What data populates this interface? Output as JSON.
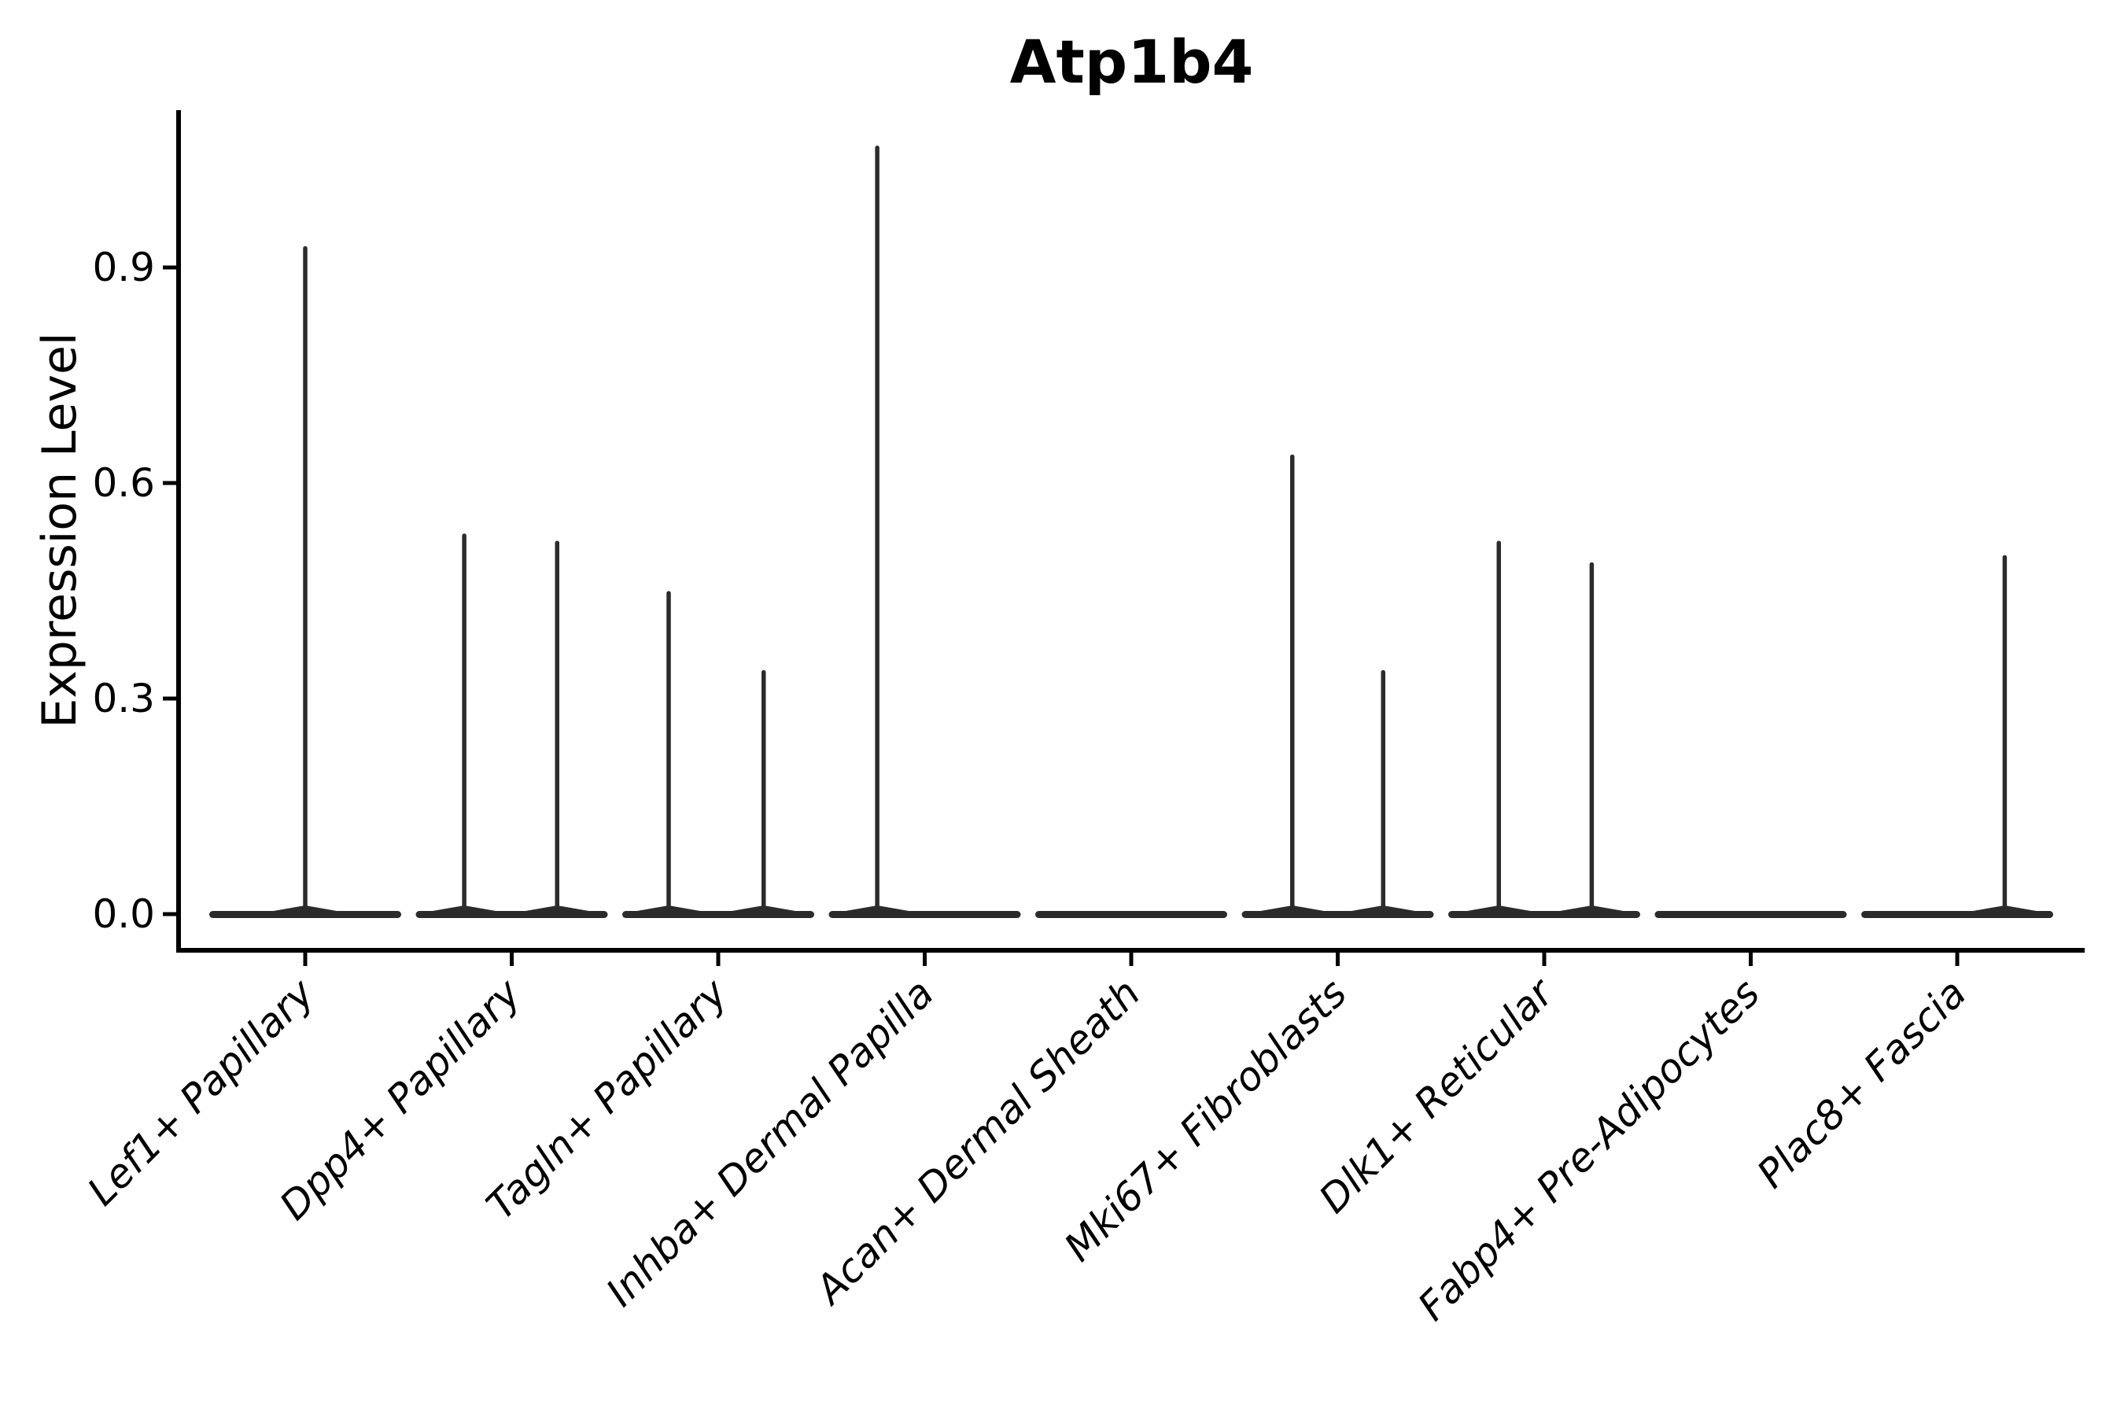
{
  "chart_data": {
    "type": "violin",
    "title": "Atp1b4",
    "xlabel": "",
    "ylabel": "Expression Level",
    "categories": [
      "Lef1+ Papillary",
      "Dpp4+ Papillary",
      "Tagln+ Papillary",
      "Inhba+ Dermal Papilla",
      "Acan+ Dermal Sheath",
      "Mki67+ Fibroblasts",
      "Dlk1+ Reticular",
      "Fabp4+ Pre-Adipocytes",
      "Plac8+ Fascia"
    ],
    "yticks": [
      0.0,
      0.3,
      0.6,
      0.9
    ],
    "ytick_labels": [
      "0.0",
      "0.3",
      "0.6",
      "0.9"
    ],
    "ylim": [
      -0.05,
      1.12
    ],
    "grid": false,
    "legend": null,
    "x_tick_rotation": 45,
    "x_tick_style": "italic",
    "violins": [
      {
        "category": "Lef1+ Papillary",
        "base_value": 0.0,
        "spikes": [
          {
            "offset": 0.0,
            "value": 0.93
          }
        ]
      },
      {
        "category": "Dpp4+ Papillary",
        "base_value": 0.0,
        "spikes": [
          {
            "offset": -0.23,
            "value": 0.53
          },
          {
            "offset": 0.22,
            "value": 0.52
          }
        ]
      },
      {
        "category": "Tagln+ Papillary",
        "base_value": 0.0,
        "spikes": [
          {
            "offset": -0.24,
            "value": 0.45
          },
          {
            "offset": 0.22,
            "value": 0.34
          }
        ]
      },
      {
        "category": "Inhba+ Dermal Papilla",
        "base_value": 0.0,
        "spikes": [
          {
            "offset": -0.23,
            "value": 1.07
          }
        ]
      },
      {
        "category": "Acan+ Dermal Sheath",
        "base_value": 0.0,
        "spikes": []
      },
      {
        "category": "Mki67+ Fibroblasts",
        "base_value": 0.0,
        "spikes": [
          {
            "offset": -0.22,
            "value": 0.64
          },
          {
            "offset": 0.22,
            "value": 0.34
          }
        ]
      },
      {
        "category": "Dlk1+ Reticular",
        "base_value": 0.0,
        "spikes": [
          {
            "offset": -0.22,
            "value": 0.52
          },
          {
            "offset": 0.23,
            "value": 0.49
          }
        ]
      },
      {
        "category": "Fabp4+ Pre-Adipocytes",
        "base_value": 0.0,
        "spikes": []
      },
      {
        "category": "Plac8+ Fascia",
        "base_value": 0.0,
        "spikes": [
          {
            "offset": 0.23,
            "value": 0.5
          }
        ]
      }
    ],
    "colors": {
      "violin": "#2b2b2b",
      "axis": "#000000",
      "text": "#000000",
      "background": "#ffffff"
    }
  }
}
